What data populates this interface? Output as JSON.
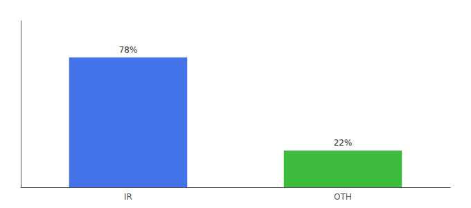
{
  "chart_data": {
    "type": "bar",
    "categories": [
      "IR",
      "OTH"
    ],
    "values": [
      78,
      22
    ],
    "value_labels": [
      "78%",
      "22%"
    ],
    "data_labels": true,
    "colors": [
      "#4472e8",
      "#3dbb3d"
    ],
    "ylim": [
      0,
      100
    ],
    "tick_labels": "x",
    "grid": false
  }
}
